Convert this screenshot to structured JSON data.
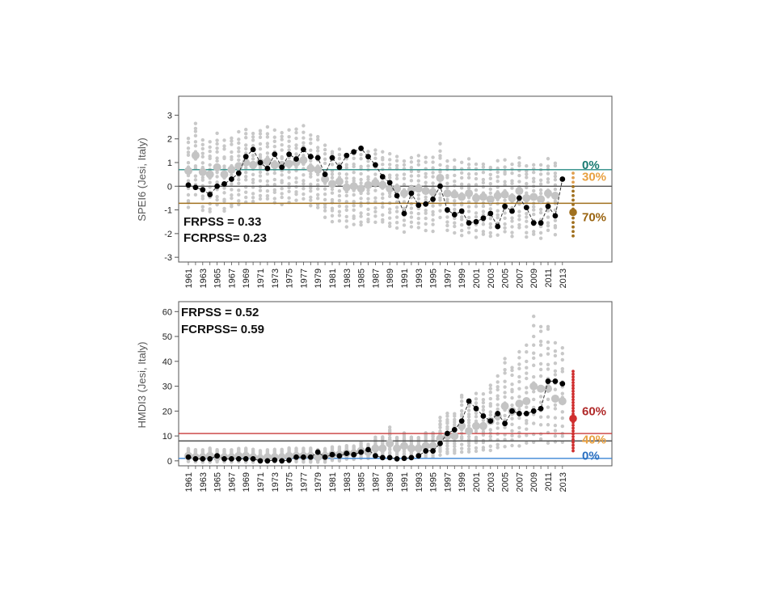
{
  "chart_data": [
    {
      "type": "scatter",
      "ylabel": "SPEI6  (Jesi, Italy)",
      "ylim": [
        -3.2,
        3.8
      ],
      "yticks": [
        -3,
        -2,
        -1,
        0,
        1,
        2,
        3
      ],
      "x_tick_labels": [
        "1961",
        "1963",
        "1965",
        "1967",
        "1969",
        "1971",
        "1973",
        "1975",
        "1977",
        "1979",
        "1981",
        "1983",
        "1985",
        "1987",
        "1989",
        "1991",
        "1993",
        "1995",
        "1997",
        "1999",
        "2001",
        "2003",
        "2005",
        "2007",
        "2009",
        "2011",
        "2013"
      ],
      "x": [
        1961,
        1962,
        1963,
        1964,
        1965,
        1966,
        1967,
        1968,
        1969,
        1970,
        1971,
        1972,
        1973,
        1974,
        1975,
        1976,
        1977,
        1978,
        1979,
        1980,
        1981,
        1982,
        1983,
        1984,
        1985,
        1986,
        1987,
        1988,
        1989,
        1990,
        1991,
        1992,
        1993,
        1994,
        1995,
        1996,
        1997,
        1998,
        1999,
        2000,
        2001,
        2002,
        2003,
        2004,
        2005,
        2006,
        2007,
        2008,
        2009,
        2010,
        2011,
        2012
      ],
      "observed": [
        0.05,
        -0.05,
        -0.15,
        -0.35,
        0.0,
        0.1,
        0.3,
        0.55,
        1.25,
        1.55,
        1.0,
        0.75,
        1.35,
        0.8,
        1.35,
        1.15,
        1.55,
        1.25,
        1.2,
        0.5,
        1.2,
        0.8,
        1.3,
        1.45,
        1.6,
        1.25,
        0.9,
        0.4,
        0.15,
        -0.4,
        -1.15,
        -0.3,
        -0.8,
        -0.75,
        -0.55,
        0.0,
        -1.0,
        -1.2,
        -1.05,
        -1.55,
        -1.5,
        -1.35,
        -1.15,
        -1.7,
        -0.85,
        -1.05,
        -0.5,
        -0.9,
        -1.55,
        -1.55,
        -0.85,
        -1.25
      ],
      "ensemble_mean": [
        0.65,
        1.3,
        0.6,
        0.5,
        0.8,
        0.5,
        0.7,
        0.85,
        1.0,
        0.9,
        1.0,
        1.05,
        0.9,
        0.9,
        0.95,
        1.0,
        1.1,
        0.75,
        0.7,
        0.3,
        0.1,
        0.2,
        -0.05,
        0.0,
        -0.1,
        0.05,
        0.15,
        0.05,
        -0.1,
        -0.1,
        -0.3,
        -0.15,
        -0.1,
        -0.2,
        -0.25,
        0.35,
        -0.3,
        -0.35,
        -0.45,
        -0.3,
        -0.5,
        -0.45,
        -0.55,
        -0.4,
        -0.35,
        -0.5,
        -0.2,
        -0.5,
        -0.45,
        -0.55,
        -0.3,
        -0.4
      ],
      "forecast_year": 2013,
      "forecast_observed": 0.3,
      "thresholds": [
        {
          "value": 0.7,
          "color": "#2a8c84"
        },
        {
          "value": 0.0,
          "color": "#555555"
        },
        {
          "value": -0.72,
          "color": "#a0701e"
        }
      ],
      "forecast_members": {
        "low": -2.1,
        "high": 0.55,
        "median": -1.1,
        "color": "#a0701e",
        "light_color": "#e0a050"
      },
      "probabilities": [
        {
          "label": "0%",
          "value": 0.9,
          "color": "#1a7a72"
        },
        {
          "label": "30%",
          "value": 0.4,
          "color": "#e8a040"
        },
        {
          "label": "70%",
          "value": -1.3,
          "color": "#9a6410"
        }
      ],
      "scores": {
        "line1": "FRPSS = 0.33",
        "line2": "FCRPSS= 0.23"
      }
    },
    {
      "type": "scatter",
      "ylabel": "HMDI3  (Jesi, Italy)",
      "ylim": [
        -2,
        64
      ],
      "yticks": [
        0,
        10,
        20,
        30,
        40,
        50,
        60
      ],
      "x_tick_labels": [
        "1961",
        "1963",
        "1965",
        "1967",
        "1969",
        "1971",
        "1973",
        "1975",
        "1977",
        "1979",
        "1981",
        "1983",
        "1985",
        "1987",
        "1989",
        "1991",
        "1993",
        "1995",
        "1997",
        "1999",
        "2001",
        "2003",
        "2005",
        "2007",
        "2009",
        "2011",
        "2013"
      ],
      "x": [
        1961,
        1962,
        1963,
        1964,
        1965,
        1966,
        1967,
        1968,
        1969,
        1970,
        1971,
        1972,
        1973,
        1974,
        1975,
        1976,
        1977,
        1978,
        1979,
        1980,
        1981,
        1982,
        1983,
        1984,
        1985,
        1986,
        1987,
        1988,
        1989,
        1990,
        1991,
        1992,
        1993,
        1994,
        1995,
        1996,
        1997,
        1998,
        1999,
        2000,
        2001,
        2002,
        2003,
        2004,
        2005,
        2006,
        2007,
        2008,
        2009,
        2010,
        2011,
        2012,
        2013
      ],
      "observed": [
        1.5,
        0.8,
        0.8,
        0.8,
        2,
        0.8,
        0.8,
        0.8,
        0.8,
        0.8,
        0,
        0,
        0.3,
        0,
        0.3,
        1.5,
        1.5,
        1.5,
        3.5,
        1.5,
        2.5,
        2,
        3,
        2.5,
        3.5,
        4.5,
        2,
        1.3,
        1.3,
        0.8,
        1,
        1.3,
        2,
        4,
        4,
        7,
        11,
        12.5,
        16,
        24,
        21,
        18,
        16,
        19,
        15,
        20,
        19,
        19,
        20,
        21,
        32,
        32,
        31
      ],
      "ensemble_mean": [
        2,
        1.5,
        1.5,
        2,
        1.5,
        1.5,
        1.5,
        2,
        2,
        1.5,
        1,
        1.5,
        1.5,
        1.5,
        2,
        2,
        2,
        2,
        1.5,
        2,
        2.5,
        2.5,
        3,
        3,
        4,
        3.5,
        5,
        5,
        7,
        5,
        6,
        5,
        5,
        6,
        6,
        9,
        10,
        10,
        14,
        12,
        14,
        14,
        16,
        18,
        22,
        20,
        23,
        24,
        30,
        29,
        29,
        25,
        24
      ],
      "thresholds": [
        {
          "value": 11,
          "color": "#c83a3a"
        },
        {
          "value": 8,
          "color": "#555555"
        },
        {
          "value": 1,
          "color": "#3c86d6"
        }
      ],
      "forecast_members": {
        "low": 4,
        "high": 36,
        "median": 17,
        "color": "#d03030"
      },
      "probabilities": [
        {
          "label": "60%",
          "value": 20,
          "color": "#b02a2a"
        },
        {
          "label": "40%",
          "value": 8.5,
          "color": "#e8a040"
        },
        {
          "label": "0%",
          "value": 2,
          "color": "#2a6fc0"
        }
      ],
      "scores": {
        "line1": "FRPSS = 0.52",
        "line2": "FCRPSS= 0.59"
      }
    }
  ]
}
